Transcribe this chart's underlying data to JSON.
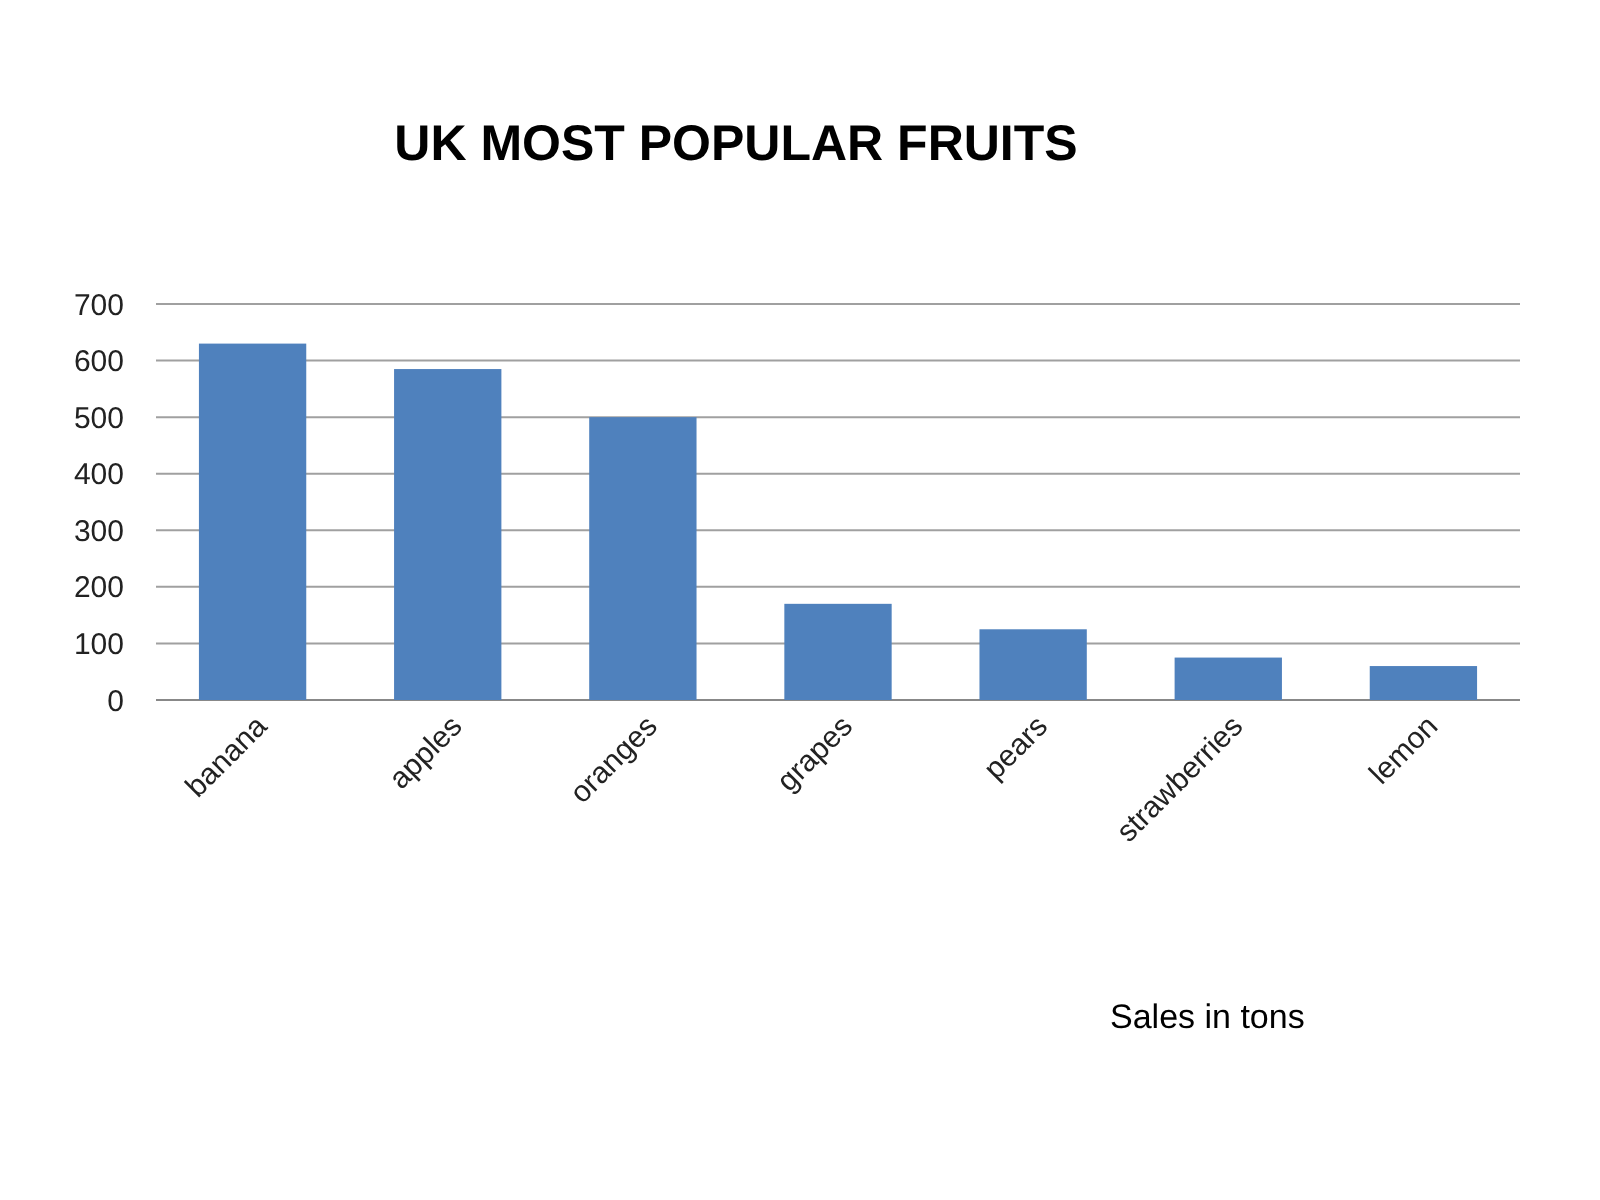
{
  "chart_data": {
    "type": "bar",
    "title": "UK MOST POPULAR FRUITS",
    "categories": [
      "banana",
      "apples",
      "oranges",
      "grapes",
      "pears",
      "strawberries",
      "lemon"
    ],
    "values": [
      630,
      585,
      500,
      170,
      125,
      75,
      60
    ],
    "color": "#4f81bd",
    "ylim": [
      0,
      700
    ],
    "yticks": [
      0,
      100,
      200,
      300,
      400,
      500,
      600,
      700
    ],
    "grid": "y",
    "annotations": [
      "Sales in tons"
    ]
  }
}
